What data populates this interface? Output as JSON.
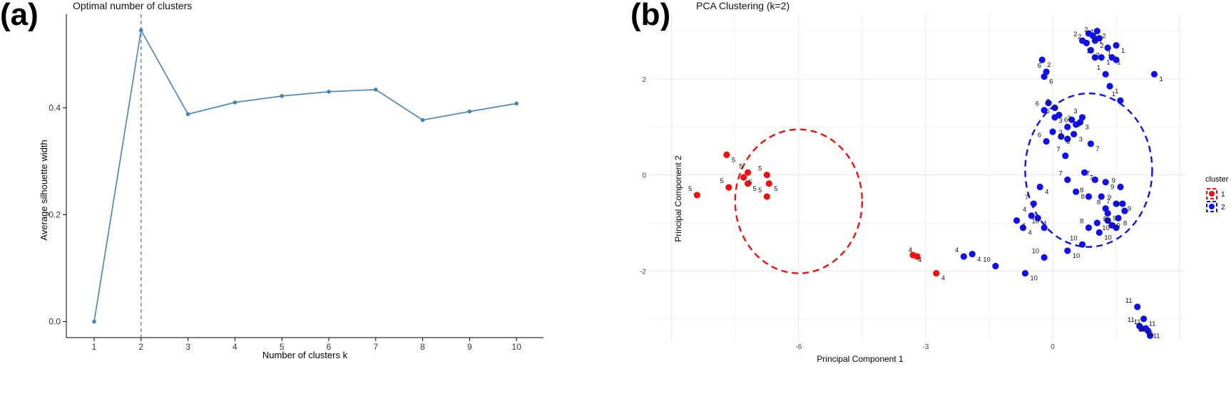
{
  "panel_a": {
    "tag": "(a)",
    "chart_data": {
      "type": "line",
      "title": "Optimal number of clusters",
      "xlabel": "Number of clusters k",
      "ylabel": "Average silhouette width",
      "categories": [
        "1",
        "2",
        "3",
        "4",
        "5",
        "6",
        "7",
        "8",
        "9",
        "10"
      ],
      "values": [
        0.0,
        0.545,
        0.388,
        0.41,
        0.422,
        0.43,
        0.434,
        0.377,
        0.393,
        0.408
      ],
      "ylim": [
        -0.03,
        0.575
      ],
      "yticks": [
        "0.0",
        "0.2",
        "0.4"
      ],
      "ytick_values": [
        0.0,
        0.2,
        0.4
      ],
      "optimal_k": 2,
      "color": "#4682b4"
    }
  },
  "panel_b": {
    "tag": "(b)",
    "chart_data": {
      "type": "scatter",
      "title": "PCA Clustering (k=2)",
      "xlabel": "Principal Component 1",
      "ylabel": "Principal Component 2",
      "xlim": [
        -9.5,
        3.1
      ],
      "ylim": [
        -3.45,
        3.35
      ],
      "xticks": [
        "-6",
        "-3",
        "0"
      ],
      "xtick_values": [
        -6,
        -3,
        0
      ],
      "yticks": [
        "-2",
        "0",
        "2"
      ],
      "ytick_values": [
        -2,
        0,
        2
      ],
      "legend": {
        "title": "cluster",
        "entries": [
          "1",
          "2"
        ],
        "position": "right"
      },
      "colors": {
        "1": "#ee1111",
        "2": "#1010ee"
      },
      "ellipses": [
        {
          "cluster": "1",
          "cx": -6.0,
          "cy": -0.55,
          "rx": 1.5,
          "ry": 1.5
        },
        {
          "cluster": "2",
          "cx": 0.85,
          "cy": 0.1,
          "rx": 1.5,
          "ry": 1.6
        }
      ],
      "points": [
        {
          "x": -8.4,
          "y": -0.42,
          "c": "1",
          "l": "5"
        },
        {
          "x": -7.7,
          "y": 0.42,
          "c": "1",
          "l": "5"
        },
        {
          "x": -7.65,
          "y": -0.26,
          "c": "1",
          "l": "5"
        },
        {
          "x": -7.3,
          "y": -0.05,
          "c": "1",
          "l": "5"
        },
        {
          "x": -7.2,
          "y": 0.05,
          "c": "1",
          "l": "5"
        },
        {
          "x": -7.2,
          "y": -0.18,
          "c": "1",
          "l": "5"
        },
        {
          "x": -6.75,
          "y": 0.0,
          "c": "1",
          "l": "5"
        },
        {
          "x": -6.7,
          "y": -0.18,
          "c": "1",
          "l": "5"
        },
        {
          "x": -6.75,
          "y": -0.45,
          "c": "1",
          "l": "5"
        },
        {
          "x": -3.3,
          "y": -1.67,
          "c": "1",
          "l": "4"
        },
        {
          "x": -3.2,
          "y": -1.7,
          "c": "1",
          "l": "4"
        },
        {
          "x": -2.75,
          "y": -2.05,
          "c": "1",
          "l": "4"
        },
        {
          "x": -2.1,
          "y": -1.7,
          "c": "2",
          "l": "4"
        },
        {
          "x": -1.9,
          "y": -1.65,
          "c": "2",
          "l": "4"
        },
        {
          "x": -1.35,
          "y": -1.9,
          "c": "2",
          "l": "10"
        },
        {
          "x": -0.65,
          "y": -2.05,
          "c": "2",
          "l": "10"
        },
        {
          "x": -0.2,
          "y": -1.72,
          "c": "2",
          "l": "10"
        },
        {
          "x": 0.35,
          "y": -1.58,
          "c": "2",
          "l": "10"
        },
        {
          "x": 0.7,
          "y": -1.45,
          "c": "2",
          "l": "10"
        },
        {
          "x": -0.7,
          "y": -1.1,
          "c": "2",
          "l": "4"
        },
        {
          "x": -0.5,
          "y": -0.85,
          "c": "2",
          "l": "4"
        },
        {
          "x": -0.35,
          "y": -0.9,
          "c": "2",
          "l": "4"
        },
        {
          "x": -0.2,
          "y": -1.1,
          "c": "2",
          "l": "10"
        },
        {
          "x": -0.85,
          "y": -0.95,
          "c": "2",
          "l": "4"
        },
        {
          "x": -0.45,
          "y": -0.6,
          "c": "2",
          "l": "7"
        },
        {
          "x": -0.3,
          "y": -0.25,
          "c": "2",
          "l": "4"
        },
        {
          "x": 0.35,
          "y": -0.1,
          "c": "2",
          "l": "7"
        },
        {
          "x": 0.75,
          "y": 0.05,
          "c": "2",
          "l": "7"
        },
        {
          "x": 1.0,
          "y": -0.1,
          "c": "2",
          "l": "7"
        },
        {
          "x": 1.25,
          "y": -0.15,
          "c": "2",
          "l": "9"
        },
        {
          "x": 1.6,
          "y": -0.25,
          "c": "2",
          "l": "9"
        },
        {
          "x": 0.55,
          "y": -0.35,
          "c": "2",
          "l": "8"
        },
        {
          "x": 0.85,
          "y": -0.45,
          "c": "2",
          "l": "8"
        },
        {
          "x": 1.15,
          "y": -0.45,
          "c": "2",
          "l": "7"
        },
        {
          "x": 1.25,
          "y": -0.7,
          "c": "2",
          "l": "8"
        },
        {
          "x": 1.3,
          "y": -0.8,
          "c": "2",
          "l": "9"
        },
        {
          "x": 1.5,
          "y": -0.6,
          "c": "2",
          "l": "9"
        },
        {
          "x": 1.65,
          "y": -0.6,
          "c": "2",
          "l": "9"
        },
        {
          "x": 1.7,
          "y": -0.75,
          "c": "2",
          "l": "9"
        },
        {
          "x": 1.55,
          "y": -0.9,
          "c": "2",
          "l": "8"
        },
        {
          "x": 1.4,
          "y": -1.05,
          "c": "2",
          "l": "8"
        },
        {
          "x": 1.05,
          "y": -1.0,
          "c": "2",
          "l": "10"
        },
        {
          "x": 0.85,
          "y": -1.1,
          "c": "2",
          "l": "8"
        },
        {
          "x": 1.1,
          "y": -1.2,
          "c": "2",
          "l": "10"
        },
        {
          "x": 1.5,
          "y": -1.1,
          "c": "2",
          "l": "8"
        },
        {
          "x": 1.3,
          "y": -0.95,
          "c": "2",
          "l": "10"
        },
        {
          "x": 0.3,
          "y": 0.4,
          "c": "2",
          "l": "7"
        },
        {
          "x": 0.9,
          "y": 0.65,
          "c": "2",
          "l": "7"
        },
        {
          "x": -0.15,
          "y": 0.7,
          "c": "2",
          "l": "6"
        },
        {
          "x": 0.2,
          "y": 0.8,
          "c": "2",
          "l": "6"
        },
        {
          "x": 0.35,
          "y": 0.75,
          "c": "2",
          "l": "3"
        },
        {
          "x": 0.5,
          "y": 0.85,
          "c": "2",
          "l": "3"
        },
        {
          "x": 0.35,
          "y": 1.0,
          "c": "2",
          "l": "3"
        },
        {
          "x": 0.45,
          "y": 1.15,
          "c": "2",
          "l": "3"
        },
        {
          "x": 0.55,
          "y": 1.05,
          "c": "2",
          "l": "3"
        },
        {
          "x": 0.65,
          "y": 1.1,
          "c": "2",
          "l": "3"
        },
        {
          "x": 0.7,
          "y": 1.2,
          "c": "2",
          "l": "3"
        },
        {
          "x": 0.0,
          "y": 0.9,
          "c": "2",
          "l": "6"
        },
        {
          "x": 0.05,
          "y": 1.2,
          "c": "2",
          "l": "6"
        },
        {
          "x": 0.15,
          "y": 1.25,
          "c": "2",
          "l": "6"
        },
        {
          "x": -0.2,
          "y": 1.35,
          "c": "2",
          "l": "6"
        },
        {
          "x": -0.1,
          "y": 1.5,
          "c": "2",
          "l": "3"
        },
        {
          "x": 0.05,
          "y": 1.4,
          "c": "2",
          "l": "6"
        },
        {
          "x": -0.2,
          "y": 2.05,
          "c": "2",
          "l": "6"
        },
        {
          "x": -0.15,
          "y": 2.15,
          "c": "2",
          "l": "6"
        },
        {
          "x": -0.25,
          "y": 2.4,
          "c": "2",
          "l": "2"
        },
        {
          "x": 1.6,
          "y": 1.55,
          "c": "2",
          "l": "1"
        },
        {
          "x": 1.35,
          "y": 1.85,
          "c": "2",
          "l": "1"
        },
        {
          "x": 1.25,
          "y": 2.1,
          "c": "2",
          "l": "1"
        },
        {
          "x": 2.4,
          "y": 2.1,
          "c": "2",
          "l": "1"
        },
        {
          "x": 0.7,
          "y": 2.8,
          "c": "2",
          "l": "2"
        },
        {
          "x": 0.85,
          "y": 2.95,
          "c": "2",
          "l": "2"
        },
        {
          "x": 0.95,
          "y": 2.9,
          "c": "2",
          "l": "2"
        },
        {
          "x": 1.05,
          "y": 3.0,
          "c": "2",
          "l": "2"
        },
        {
          "x": 0.8,
          "y": 2.75,
          "c": "2",
          "l": "2"
        },
        {
          "x": 1.0,
          "y": 2.8,
          "c": "2",
          "l": "2"
        },
        {
          "x": 1.1,
          "y": 2.85,
          "c": "2",
          "l": "1"
        },
        {
          "x": 0.9,
          "y": 2.6,
          "c": "2",
          "l": "2"
        },
        {
          "x": 1.0,
          "y": 2.45,
          "c": "2",
          "l": "1"
        },
        {
          "x": 1.15,
          "y": 2.45,
          "c": "2",
          "l": "1"
        },
        {
          "x": 1.3,
          "y": 2.65,
          "c": "2",
          "l": "1"
        },
        {
          "x": 1.4,
          "y": 2.45,
          "c": "2",
          "l": "1"
        },
        {
          "x": 1.5,
          "y": 2.4,
          "c": "2",
          "l": "1"
        },
        {
          "x": 1.5,
          "y": 2.7,
          "c": "2",
          "l": "1"
        },
        {
          "x": 2.0,
          "y": -2.75,
          "c": "2",
          "l": "11"
        },
        {
          "x": 2.15,
          "y": -3.0,
          "c": "2",
          "l": "11"
        },
        {
          "x": 2.05,
          "y": -3.15,
          "c": "2",
          "l": "11"
        },
        {
          "x": 2.1,
          "y": -3.2,
          "c": "2",
          "l": "11"
        },
        {
          "x": 2.2,
          "y": -3.2,
          "c": "2",
          "l": "11"
        },
        {
          "x": 2.25,
          "y": -3.25,
          "c": "2",
          "l": "11"
        },
        {
          "x": 2.3,
          "y": -3.35,
          "c": "2",
          "l": "11"
        }
      ]
    }
  }
}
